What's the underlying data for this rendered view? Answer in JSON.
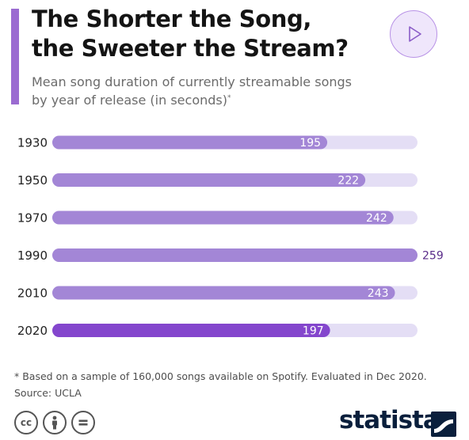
{
  "header": {
    "title": "The Shorter the Song,\nthe Sweeter the Stream?",
    "subtitle": "Mean song duration of currently streamable songs\nby year of release (in seconds)",
    "subtitle_mark": "*"
  },
  "chart_data": {
    "type": "bar",
    "orientation": "horizontal",
    "title": "The Shorter the Song, the Sweeter the Stream?",
    "subtitle": "Mean song duration of currently streamable songs by year of release (in seconds)",
    "categories": [
      "1930",
      "1950",
      "1970",
      "1990",
      "2010",
      "2020"
    ],
    "values": [
      195,
      222,
      242,
      259,
      243,
      197
    ],
    "xlim": [
      0,
      259
    ],
    "grid": false,
    "legend": "none",
    "colors": {
      "bar": "#a386d6",
      "highlight": "#8446cd",
      "track": "#e4def5",
      "inside_label": "#ffffff",
      "outside_label": "#5a2c8a"
    },
    "highlight_index": 5
  },
  "footer": {
    "note": "* Based on a sample of 160,000 songs available on Spotify. Evaluated in Dec 2020.",
    "source": "Source: UCLA",
    "license_icons": [
      "cc-icon",
      "attribution-icon",
      "no-derivatives-icon"
    ],
    "brand": "statista"
  }
}
